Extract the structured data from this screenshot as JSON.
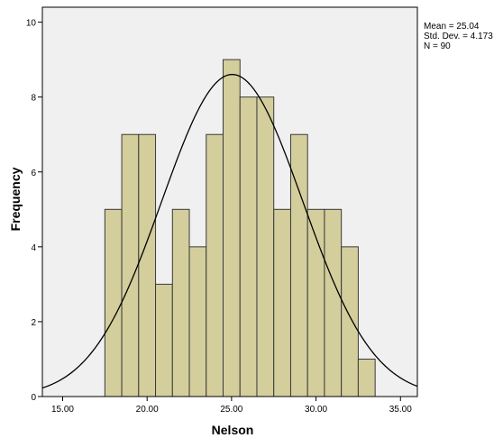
{
  "chart_data": {
    "type": "bar",
    "xlabel": "Nelson",
    "ylabel": "Frequency",
    "xlim": [
      13.8,
      36.0
    ],
    "ylim": [
      0,
      10.4
    ],
    "x_ticks": [
      15,
      20,
      25,
      30,
      35
    ],
    "x_tick_labels": [
      "15.00",
      "20.00",
      "25.00",
      "30.00",
      "35.00"
    ],
    "y_ticks": [
      0,
      2,
      4,
      6,
      8,
      10
    ],
    "y_tick_labels": [
      "0",
      "2",
      "4",
      "6",
      "8",
      "10"
    ],
    "bin_width": 1,
    "bins": [
      {
        "start": 17.5,
        "end": 18.5,
        "value": 5
      },
      {
        "start": 18.5,
        "end": 19.5,
        "value": 7
      },
      {
        "start": 19.5,
        "end": 20.5,
        "value": 7
      },
      {
        "start": 20.5,
        "end": 21.5,
        "value": 3
      },
      {
        "start": 21.5,
        "end": 22.5,
        "value": 5
      },
      {
        "start": 22.5,
        "end": 23.5,
        "value": 4
      },
      {
        "start": 23.5,
        "end": 24.5,
        "value": 7
      },
      {
        "start": 24.5,
        "end": 25.5,
        "value": 9
      },
      {
        "start": 25.5,
        "end": 26.5,
        "value": 8
      },
      {
        "start": 26.5,
        "end": 27.5,
        "value": 8
      },
      {
        "start": 27.5,
        "end": 28.5,
        "value": 5
      },
      {
        "start": 28.5,
        "end": 29.5,
        "value": 7
      },
      {
        "start": 29.5,
        "end": 30.5,
        "value": 5
      },
      {
        "start": 30.5,
        "end": 31.5,
        "value": 5
      },
      {
        "start": 31.5,
        "end": 32.5,
        "value": 4
      },
      {
        "start": 32.5,
        "end": 33.5,
        "value": 1
      }
    ],
    "normal_curve": {
      "mean": 25.04,
      "std_dev": 4.173,
      "n": 90
    },
    "stats": {
      "mean_label": "Mean = 25.04",
      "std_label": "Std. Dev. = 4.173",
      "n_label": "N = 90"
    },
    "colors": {
      "bar_fill": "#d3ce9c",
      "bar_stroke": "#3a3a3a",
      "plot_bg": "#f0f0f0",
      "curve": "#000000"
    }
  }
}
